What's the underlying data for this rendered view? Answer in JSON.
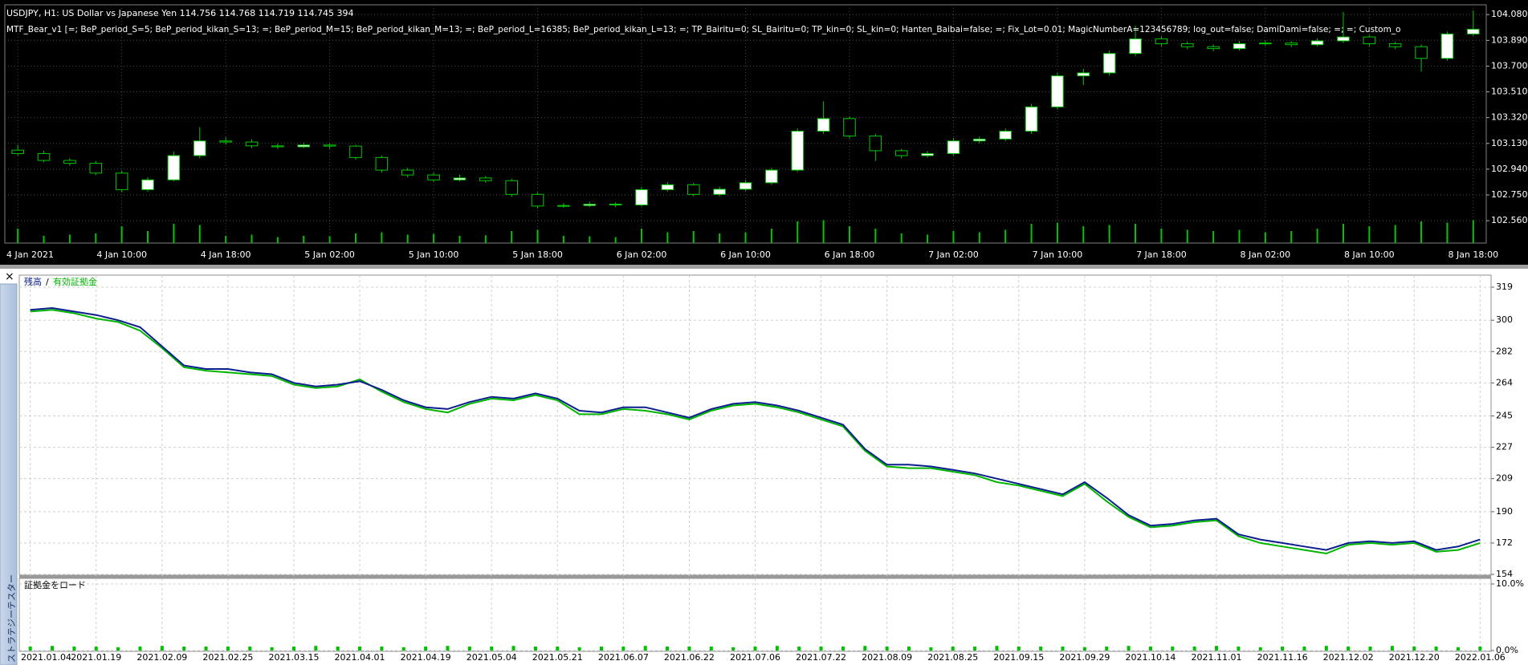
{
  "window": {
    "close": "×",
    "tab": "ストラテジーテスター"
  },
  "chart_data": [
    {
      "type": "candlestick",
      "title": "USDJPY, H1:  US Dollar vs Japanese Yen  114.756 114.768 114.719 114.745  394",
      "subtitle": "MTF_Bear_v1 [=; BeP_period_S=5; BeP_period_kikan_S=13; =; BeP_period_M=15; BeP_period_kikan_M=13; =; BeP_period_L=16385; BeP_period_kikan_L=13; =; TP_Bairitu=0; SL_Bairitu=0; TP_kin=0; SL_kin=0; Hanten_Baibai=false; =; Fix_Lot=0.01; MagicNumberA=123456789; log_out=false; DamiDami=false; =; =; Custom_o",
      "categories": [
        "4 Jan 2021",
        null,
        null,
        null,
        "4 Jan 10:00",
        null,
        null,
        null,
        "4 Jan 18:00",
        null,
        null,
        null,
        "5 Jan 02:00",
        null,
        null,
        null,
        "5 Jan 10:00",
        null,
        null,
        null,
        "5 Jan 18:00",
        null,
        null,
        null,
        "6 Jan 02:00",
        null,
        null,
        null,
        "6 Jan 10:00",
        null,
        null,
        null,
        "6 Jan 18:00",
        null,
        null,
        null,
        "7 Jan 02:00",
        null,
        null,
        null,
        "7 Jan 10:00",
        null,
        null,
        null,
        "7 Jan 18:00",
        null,
        null,
        null,
        "8 Jan 02:00",
        null,
        null,
        null,
        "8 Jan 10:00",
        null,
        null,
        null,
        "8 Jan 18:00"
      ],
      "ohlc": [
        [
          103.08,
          103.12,
          103.04,
          103.055
        ],
        [
          103.055,
          103.075,
          102.99,
          103.004
        ],
        [
          103.004,
          103.02,
          102.965,
          102.983
        ],
        [
          102.983,
          103.0,
          102.895,
          102.911
        ],
        [
          102.911,
          102.93,
          102.77,
          102.789
        ],
        [
          102.789,
          102.88,
          102.775,
          102.861
        ],
        [
          102.861,
          103.07,
          102.85,
          103.04
        ],
        [
          103.04,
          103.25,
          103.02,
          103.148
        ],
        [
          103.148,
          103.175,
          103.12,
          103.14
        ],
        [
          103.14,
          103.16,
          103.095,
          103.112
        ],
        [
          103.112,
          103.13,
          103.09,
          103.105
        ],
        [
          103.105,
          103.135,
          103.095,
          103.118
        ],
        [
          103.118,
          103.13,
          103.09,
          103.11
        ],
        [
          103.11,
          103.12,
          103.01,
          103.026
        ],
        [
          103.026,
          103.04,
          102.915,
          102.933
        ],
        [
          102.933,
          102.95,
          102.88,
          102.897
        ],
        [
          102.897,
          102.915,
          102.845,
          102.861
        ],
        [
          102.861,
          102.9,
          102.85,
          102.875
        ],
        [
          102.875,
          102.89,
          102.84,
          102.855
        ],
        [
          102.855,
          102.87,
          102.735,
          102.754
        ],
        [
          102.754,
          102.77,
          102.65,
          102.668
        ],
        [
          102.668,
          102.69,
          102.655,
          102.672
        ],
        [
          102.672,
          102.7,
          102.66,
          102.682
        ],
        [
          102.682,
          102.695,
          102.66,
          102.676
        ],
        [
          102.676,
          102.81,
          102.665,
          102.789
        ],
        [
          102.789,
          102.845,
          102.775,
          102.825
        ],
        [
          102.825,
          102.84,
          102.74,
          102.754
        ],
        [
          102.754,
          102.81,
          102.74,
          102.792
        ],
        [
          102.792,
          102.86,
          102.78,
          102.84
        ],
        [
          102.84,
          102.95,
          102.825,
          102.933
        ],
        [
          102.933,
          103.24,
          102.92,
          103.22
        ],
        [
          103.22,
          103.44,
          103.2,
          103.313
        ],
        [
          103.313,
          103.33,
          103.165,
          103.184
        ],
        [
          103.184,
          103.2,
          103.0,
          103.076
        ],
        [
          103.076,
          103.09,
          103.02,
          103.04
        ],
        [
          103.04,
          103.075,
          103.025,
          103.055
        ],
        [
          103.055,
          103.17,
          103.04,
          103.148
        ],
        [
          103.148,
          103.18,
          103.13,
          103.162
        ],
        [
          103.162,
          103.24,
          103.145,
          103.22
        ],
        [
          103.22,
          103.42,
          103.2,
          103.399
        ],
        [
          103.399,
          103.65,
          103.38,
          103.628
        ],
        [
          103.628,
          103.68,
          103.56,
          103.65
        ],
        [
          103.65,
          103.815,
          103.63,
          103.793
        ],
        [
          103.793,
          104.0,
          103.775,
          103.901
        ],
        [
          103.901,
          103.92,
          103.845,
          103.865
        ],
        [
          103.865,
          103.88,
          103.825,
          103.843
        ],
        [
          103.843,
          103.86,
          103.81,
          103.829
        ],
        [
          103.829,
          103.885,
          103.815,
          103.865
        ],
        [
          103.865,
          103.89,
          103.85,
          103.87
        ],
        [
          103.87,
          103.885,
          103.84,
          103.858
        ],
        [
          103.858,
          103.905,
          103.845,
          103.886
        ],
        [
          103.886,
          104.1,
          103.87,
          103.915
        ],
        [
          103.915,
          103.93,
          103.845,
          103.865
        ],
        [
          103.865,
          103.88,
          103.825,
          103.843
        ],
        [
          103.843,
          103.86,
          103.66,
          103.757
        ],
        [
          103.757,
          103.955,
          103.74,
          103.937
        ],
        [
          103.937,
          104.11,
          103.92,
          103.972
        ]
      ],
      "volume": [
        60,
        30,
        35,
        40,
        70,
        50,
        80,
        75,
        30,
        35,
        25,
        30,
        28,
        40,
        45,
        35,
        38,
        30,
        32,
        50,
        55,
        30,
        28,
        25,
        60,
        45,
        50,
        40,
        45,
        60,
        90,
        95,
        70,
        60,
        40,
        35,
        50,
        45,
        55,
        80,
        85,
        70,
        75,
        80,
        60,
        55,
        50,
        55,
        45,
        50,
        60,
        80,
        70,
        75,
        90,
        85,
        95
      ],
      "color": "#00c800",
      "up_color": "#ffffff",
      "down_color": "#000000",
      "ylim": [
        102.395,
        104.152
      ],
      "yticks": [
        {
          "value": 104.08,
          "label": "104.080"
        },
        {
          "value": 103.89,
          "label": "103.890"
        },
        {
          "value": 103.7,
          "label": "103.700"
        },
        {
          "value": 103.51,
          "label": "103.510"
        },
        {
          "value": 103.32,
          "label": "103.320"
        },
        {
          "value": 103.13,
          "label": "103.130"
        },
        {
          "value": 102.94,
          "label": "102.940"
        },
        {
          "value": 102.75,
          "label": "102.750"
        },
        {
          "value": 102.56,
          "label": "102.560"
        }
      ],
      "grid": true
    },
    {
      "type": "line",
      "categories": [
        "2021.01.04",
        null,
        null,
        "2021.01.19",
        null,
        null,
        "2021.02.09",
        null,
        null,
        "2021.02.25",
        null,
        null,
        "2021.03.15",
        null,
        null,
        "2021.04.01",
        null,
        null,
        "2021.04.19",
        null,
        null,
        "2021.05.04",
        null,
        null,
        "2021.05.21",
        null,
        null,
        "2021.06.07",
        null,
        null,
        "2021.06.22",
        null,
        null,
        "2021.07.06",
        null,
        null,
        "2021.07.22",
        null,
        null,
        "2021.08.09",
        null,
        null,
        "2021.08.25",
        null,
        null,
        "2021.09.15",
        null,
        null,
        "2021.09.29",
        null,
        null,
        "2021.10.14",
        null,
        null,
        "2021.11.01",
        null,
        null,
        "2021.11.16",
        null,
        null,
        "2021.12.02",
        null,
        null,
        "2021.12.20",
        null,
        null,
        "2022.01.06"
      ],
      "series": [
        {
          "name": "有効証拠金",
          "color": "#00b400",
          "values": [
            305,
            306,
            304,
            301,
            299,
            294,
            284,
            273,
            271,
            270,
            269,
            268,
            263,
            261,
            262,
            266,
            259,
            253,
            249,
            247,
            252,
            255,
            254,
            257,
            254,
            246,
            246,
            249,
            248,
            246,
            243,
            248,
            251,
            252,
            250,
            247,
            243,
            239,
            225,
            216,
            215,
            215,
            213,
            211,
            207,
            205,
            202,
            199,
            206,
            196,
            187,
            181,
            182,
            184,
            185,
            176,
            172,
            170,
            168,
            166,
            171,
            172,
            171,
            172,
            167,
            168,
            172
          ]
        },
        {
          "name": "残高",
          "color": "#0a1e8c",
          "values": [
            306,
            307,
            305,
            303,
            300,
            296,
            285,
            274,
            272,
            272,
            270,
            269,
            264,
            262,
            263,
            265,
            260,
            254,
            250,
            249,
            253,
            256,
            255,
            258,
            255,
            248,
            247,
            250,
            250,
            247,
            244,
            249,
            252,
            253,
            251,
            248,
            244,
            240,
            226,
            217,
            217,
            216,
            214,
            212,
            209,
            206,
            203,
            200,
            207,
            198,
            188,
            182,
            183,
            185,
            186,
            177,
            174,
            172,
            170,
            168,
            172,
            173,
            172,
            173,
            168,
            170,
            174
          ]
        }
      ],
      "legend_separator": "/",
      "ylim": [
        154,
        319
      ],
      "yticks": [
        319,
        300,
        282,
        264,
        245,
        227,
        209,
        190,
        172,
        154
      ],
      "grid": true
    },
    {
      "type": "bar",
      "title": "証拠金をロード",
      "values": [
        0.6,
        0.7,
        0.6,
        0.6,
        0.5,
        0.6,
        0.7,
        0.6,
        0.6,
        0.6,
        0.6,
        0.5,
        0.6,
        0.7,
        0.6,
        0.6,
        0.6,
        0.5,
        0.6,
        0.7,
        0.6,
        0.6,
        0.7,
        0.6,
        0.6,
        0.5,
        0.6,
        0.6,
        0.7,
        0.6,
        0.6,
        0.6,
        0.5,
        0.6,
        0.7,
        0.6,
        0.6,
        0.6,
        0.7,
        0.6,
        0.6,
        0.5,
        0.6,
        0.6,
        0.7,
        0.6,
        0.6,
        0.6,
        0.5,
        0.6,
        0.7,
        0.6,
        0.6,
        0.6,
        0.7,
        0.6,
        0.5,
        0.6,
        0.6,
        0.7,
        0.6,
        0.6,
        0.7,
        0.6,
        0.6,
        0.5,
        0.6
      ],
      "color": "#00c000",
      "ylim": [
        0,
        10
      ],
      "yticks": [
        {
          "value": 10,
          "label": "10.0%"
        },
        {
          "value": 0,
          "label": "0.0%"
        }
      ],
      "grid": true
    }
  ]
}
